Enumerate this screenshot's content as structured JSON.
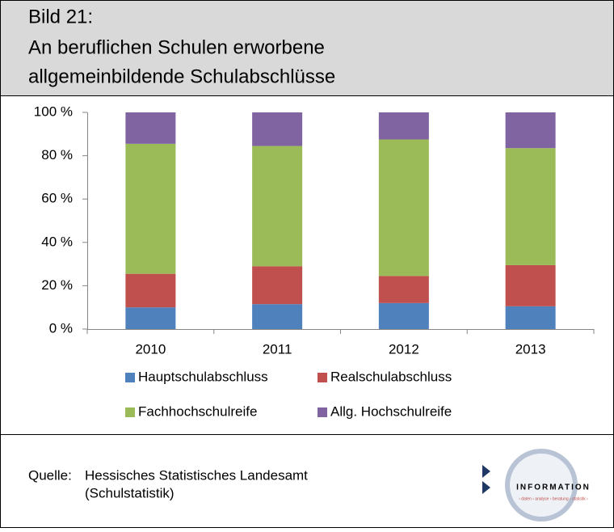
{
  "chart_data": {
    "type": "stacked_bar",
    "title": [
      "Bild 21:",
      "An beruflichen Schulen erworbene",
      "allgemeinbildende Schulabschlüsse"
    ],
    "categories": [
      "2010",
      "2011",
      "2012",
      "2013"
    ],
    "series": [
      {
        "name": "Hauptschulabschluss",
        "color": "#4f81bd",
        "values": [
          10,
          11.5,
          12,
          10.5
        ]
      },
      {
        "name": "Realschulabschluss",
        "color": "#c0504d",
        "values": [
          15.5,
          17.5,
          12.5,
          19
        ]
      },
      {
        "name": "Fachhochschulreife",
        "color": "#9bbb59",
        "values": [
          60,
          55.5,
          63,
          54
        ]
      },
      {
        "name": "Allg. Hochschulreife",
        "color": "#8064a2",
        "values": [
          14.5,
          15.5,
          12.5,
          16.5
        ]
      }
    ],
    "ylim": [
      0,
      100
    ],
    "yticks": [
      {
        "value": 0,
        "label": "0 %"
      },
      {
        "value": 20,
        "label": "20 %"
      },
      {
        "value": 40,
        "label": "40 %"
      },
      {
        "value": 60,
        "label": "60 %"
      },
      {
        "value": 80,
        "label": "80 %"
      },
      {
        "value": 100,
        "label": "100 %"
      }
    ],
    "grid": false,
    "legend": "bottom",
    "source_label": "Quelle:",
    "source": [
      "Hessisches Statistisches Landesamt",
      "(Schulstatistik)"
    ],
    "logo": {
      "text": "INFORMATION",
      "tagline": "› daten › analyse › beratung › statistik ›"
    }
  }
}
